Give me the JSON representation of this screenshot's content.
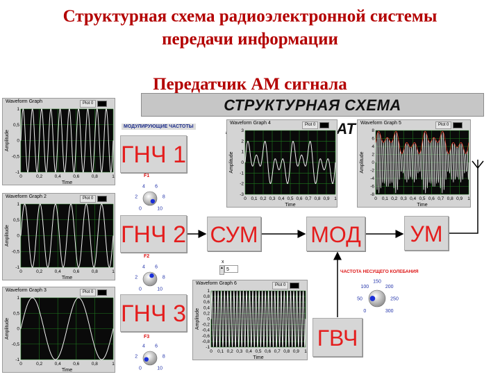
{
  "page": {
    "title_line1": "Структурная схема радиоэлектронной системы",
    "title_line2": "передачи информации",
    "subtitle": "Передатчик АМ сигнала"
  },
  "banner": "СТРУКТУРНАЯ СХЕМА РАДИОПЕРЕДАТЧИКА",
  "mod_label": "МОДУЛИРУЮЩИЕ ЧАСТОТЫ",
  "blocks": {
    "gnch1": "ГНЧ 1",
    "gnch2": "ГНЧ 2",
    "gnch3": "ГНЧ 3",
    "sum": "СУМ",
    "mod": "МОД",
    "um": "УМ",
    "gvch": "ГВЧ"
  },
  "knobs": {
    "f1": {
      "label": "F1",
      "ticks": [
        "0",
        "2",
        "4",
        "6",
        "8",
        "10"
      ],
      "value": 10
    },
    "f2": {
      "label": "F2",
      "ticks": [
        "0",
        "2",
        "4",
        "6",
        "8",
        "10"
      ],
      "value": 6
    },
    "f3": {
      "label": "F3",
      "ticks": [
        "0",
        "2",
        "4",
        "6",
        "8",
        "10"
      ],
      "value": 1
    },
    "carrier": {
      "label": "ЧАСТОТА НЕСУЩЕГО КОЛЕБАНИЯ",
      "ticks": [
        "0",
        "50",
        "100",
        "150",
        "200",
        "250",
        "300"
      ],
      "value": 50
    }
  },
  "numeric_control": {
    "label": "x",
    "value": "5"
  },
  "graphs": {
    "g1": {
      "title": "Waveform Graph",
      "legend": "Plot 0",
      "ylabel": "Amplitude",
      "xlabel": "Time",
      "yticks": [
        "1",
        "0,5",
        "0",
        "-0,5",
        "-1"
      ],
      "xticks": [
        "0",
        "0,2",
        "0,4",
        "0,6",
        "0,8",
        "1"
      ]
    },
    "g2": {
      "title": "Waveform Graph 2",
      "legend": "Plot 0",
      "ylabel": "Amplitude",
      "xlabel": "Time",
      "yticks": [
        "1",
        "0,5",
        "0",
        "-0,5",
        "-1"
      ],
      "xticks": [
        "0",
        "0,2",
        "0,4",
        "0,6",
        "0,8",
        "1"
      ]
    },
    "g3": {
      "title": "Waveform Graph 3",
      "legend": "Plot 0",
      "ylabel": "Amplitude",
      "xlabel": "Time",
      "yticks": [
        "1",
        "0,5",
        "0",
        "-0,5",
        "-1"
      ],
      "xticks": [
        "0",
        "0,2",
        "0,4",
        "0,6",
        "0,8",
        "1"
      ]
    },
    "g4": {
      "title": "Waveform Graph 4",
      "legend": "Plot 0",
      "ylabel": "Amplitude",
      "xlabel": "Time",
      "yticks": [
        "3",
        "2",
        "1",
        "0",
        "-1",
        "-2",
        "-3"
      ],
      "xticks": [
        "0",
        "0,1",
        "0,2",
        "0,3",
        "0,4",
        "0,5",
        "0,6",
        "0,7",
        "0,8",
        "0,9",
        "1"
      ]
    },
    "g5": {
      "title": "Waveform Graph 5",
      "legend": "Plot 0",
      "ylabel": "Amplitude",
      "xlabel": "Time",
      "yticks": [
        "8",
        "6",
        "4",
        "2",
        "0",
        "-2",
        "-4",
        "-6",
        "-8"
      ],
      "xticks": [
        "0",
        "0,1",
        "0,2",
        "0,3",
        "0,4",
        "0,5",
        "0,6",
        "0,7",
        "0,8",
        "0,9",
        "1"
      ]
    },
    "g6": {
      "title": "Waveform Graph 6",
      "legend": "Plot 0",
      "ylabel": "Amplitude",
      "xlabel": "Time",
      "yticks": [
        "1",
        "0,8",
        "0,6",
        "0,4",
        "0,2",
        "0",
        "-0,2",
        "-0,4",
        "-0,6",
        "-0,8",
        "-1"
      ],
      "xticks": [
        "0",
        "0,1",
        "0,2",
        "0,3",
        "0,4",
        "0,5",
        "0,6",
        "0,7",
        "0,8",
        "0,9",
        "1"
      ]
    }
  },
  "colors": {
    "title": "#b30000",
    "block_text": "#e41d1d",
    "plot_bg": "#0a0a0a",
    "grid": "#1f7a1f",
    "trace": "#f2f2f2",
    "knob_accent": "#1a2fd8"
  }
}
